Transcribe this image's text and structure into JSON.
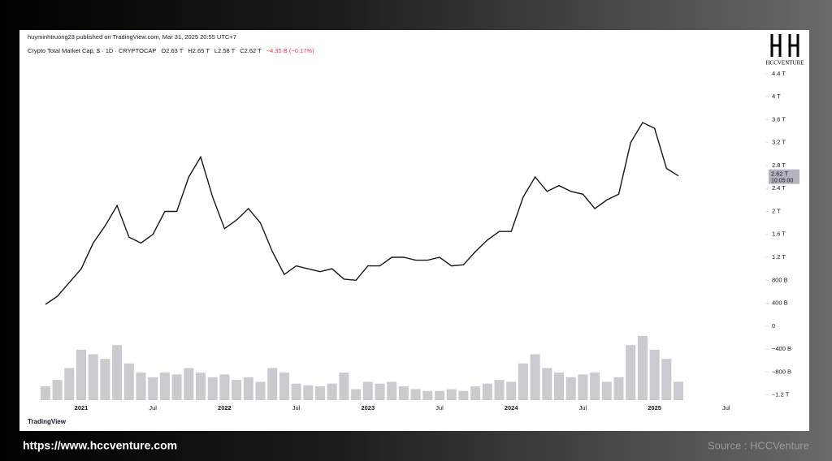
{
  "header": {
    "published": "huyminhtruong23 published on TradingView.com, Mar 31, 2025 20:55 UTC+7",
    "legend": [
      "Crypto Total Market Cap, $ · 1D · CRYPTOCAP",
      "O2.63 T",
      "H2.65 T",
      "L2.58 T",
      "C2.62 T",
      "−4.35 B (−0.17%)"
    ],
    "logo": "HCCVENTURE"
  },
  "chart_data": {
    "type": "line",
    "categories": [
      null,
      null,
      null,
      "2021",
      null,
      null,
      null,
      null,
      null,
      "Jul",
      null,
      null,
      null,
      null,
      null,
      "2022",
      null,
      null,
      null,
      null,
      null,
      "Jul",
      null,
      null,
      null,
      null,
      null,
      "2023",
      null,
      null,
      null,
      null,
      null,
      "Jul",
      null,
      null,
      null,
      null,
      null,
      "2024",
      null,
      null,
      null,
      null,
      null,
      "Jul",
      null,
      null,
      null,
      null,
      null,
      "2025",
      null,
      null,
      null,
      null,
      null,
      "Jul"
    ],
    "series": [
      {
        "name": "Crypto Total Market Cap",
        "color": "#131722",
        "values": [
          0.38,
          0.52,
          0.76,
          1.0,
          1.45,
          1.75,
          2.1,
          1.55,
          1.45,
          1.6,
          2.0,
          2.0,
          2.6,
          2.95,
          2.25,
          1.7,
          1.85,
          2.05,
          1.8,
          1.3,
          0.9,
          1.05,
          1.0,
          0.95,
          1.0,
          0.82,
          0.8,
          1.05,
          1.05,
          1.2,
          1.2,
          1.15,
          1.15,
          1.2,
          1.05,
          1.07,
          1.3,
          1.5,
          1.65,
          1.65,
          2.25,
          2.6,
          2.35,
          2.45,
          2.35,
          2.3,
          2.05,
          2.2,
          2.3,
          3.2,
          3.55,
          3.45,
          2.75,
          2.62,
          null,
          null,
          null,
          null
        ]
      },
      {
        "name": "Volume",
        "color": "#b2b5be",
        "axis": "y2",
        "values": [
          15,
          22,
          35,
          55,
          50,
          45,
          60,
          40,
          30,
          25,
          30,
          28,
          35,
          30,
          25,
          28,
          22,
          25,
          20,
          35,
          30,
          18,
          16,
          15,
          18,
          30,
          12,
          20,
          18,
          20,
          15,
          12,
          10,
          10,
          12,
          10,
          15,
          18,
          22,
          20,
          40,
          50,
          35,
          30,
          25,
          28,
          30,
          20,
          25,
          60,
          70,
          55,
          45,
          20,
          null,
          null,
          null,
          null
        ]
      }
    ],
    "ylim": [
      -1.29,
      5.12
    ],
    "yticks": [
      {
        "value": 4.4,
        "label": "4.4 T"
      },
      {
        "value": 4,
        "label": "4 T"
      },
      {
        "value": 3.6,
        "label": "3.6 T"
      },
      {
        "value": 3.2,
        "label": "3.2 T"
      },
      {
        "value": 2.8,
        "label": "2.8 T"
      },
      {
        "value": 2.4,
        "label": "2.4 T"
      },
      {
        "value": 2,
        "label": "2 T"
      },
      {
        "value": 1.6,
        "label": "1.6 T"
      },
      {
        "value": 1.2,
        "label": "1.2 T"
      },
      {
        "value": 0.8,
        "label": "800 B"
      },
      {
        "value": 0.4,
        "label": "400 B"
      },
      0,
      {
        "value": -0.4,
        "label": "−400 B"
      },
      {
        "value": -0.8,
        "label": "−800 B"
      },
      {
        "value": -1.2,
        "label": "−1.2 T"
      }
    ],
    "y2lim": [
      0,
      100
    ],
    "last_price": {
      "value": 2.62,
      "label": "2.62 T"
    },
    "countdown": "10:05:00"
  },
  "footer": {
    "brand": "TradingView",
    "url": "https://www.hccventure.com",
    "source": "Source : HCCVenture"
  }
}
